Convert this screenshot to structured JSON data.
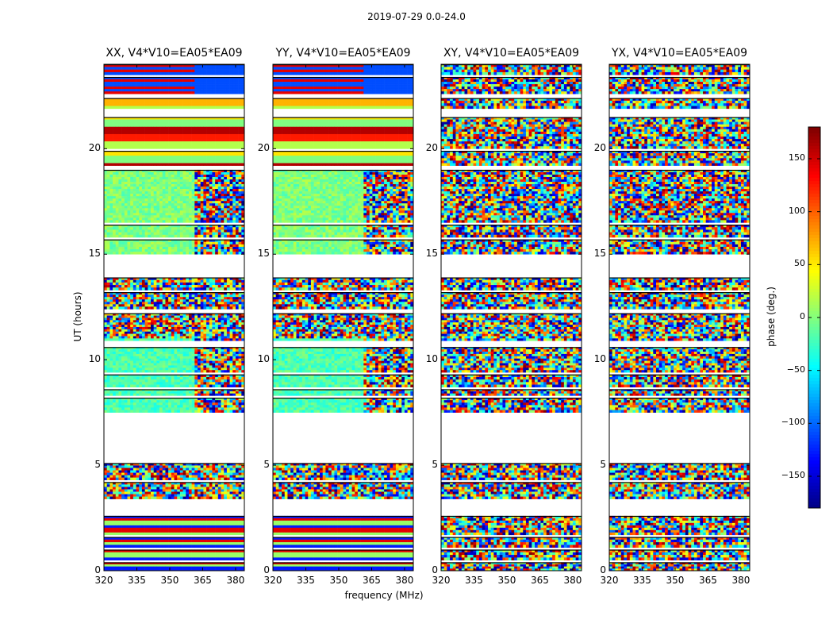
{
  "chart_data": {
    "type": "heatmap",
    "suptitle": "2019-07-29 0.0-24.0",
    "xlabel": "frequency (MHz)",
    "ylabel": "UT (hours)",
    "xlim": [
      320,
      384
    ],
    "ylim": [
      0,
      24
    ],
    "xticks": [
      "320",
      "335",
      "350",
      "365",
      "380"
    ],
    "yticks": [
      "0",
      "5",
      "10",
      "15",
      "20"
    ],
    "panels": [
      {
        "title": "XX, V4*V10=EA05*EA09",
        "type": "structured"
      },
      {
        "title": "YY, V4*V10=EA05*EA09",
        "type": "structured"
      },
      {
        "title": "XY, V4*V10=EA05*EA09",
        "type": "noise"
      },
      {
        "title": "YX, V4*V10=EA05*EA09",
        "type": "noise"
      }
    ],
    "colorbar": {
      "label": "phase (deg.)",
      "range": [
        -180,
        180
      ],
      "ticks": [
        "150",
        "100",
        "50",
        "0",
        "−50",
        "−100",
        "−150"
      ],
      "colormap": "jet"
    },
    "data_bands_ut": [
      [
        0.0,
        0.4
      ],
      [
        0.5,
        1.0
      ],
      [
        1.1,
        1.6
      ],
      [
        1.7,
        2.6
      ],
      [
        3.4,
        4.2
      ],
      [
        4.3,
        5.1
      ],
      [
        7.5,
        8.2
      ],
      [
        8.3,
        8.6
      ],
      [
        8.7,
        9.3
      ],
      [
        9.4,
        10.6
      ],
      [
        10.9,
        12.2
      ],
      [
        12.4,
        13.2
      ],
      [
        13.3,
        13.9
      ],
      [
        15.0,
        15.7
      ],
      [
        15.8,
        16.4
      ],
      [
        16.5,
        19.0
      ],
      [
        19.2,
        19.9
      ],
      [
        20.0,
        21.5
      ],
      [
        21.9,
        22.4
      ],
      [
        22.6,
        23.4
      ],
      [
        23.5,
        24.0
      ]
    ]
  }
}
